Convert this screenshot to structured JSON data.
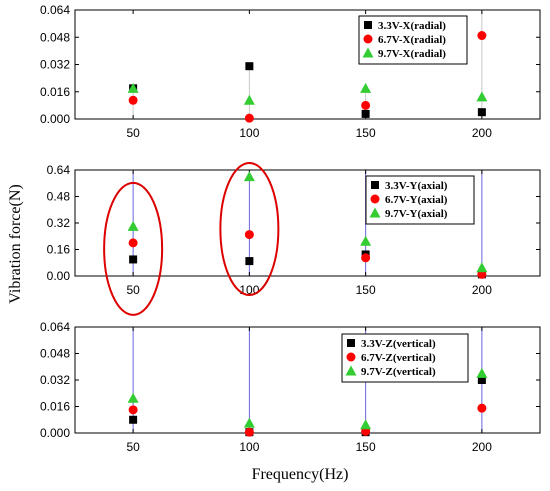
{
  "chart_data": [
    {
      "type": "scatter",
      "title": "",
      "xlabel": "",
      "ylabel": "",
      "x": [
        50,
        100,
        150,
        200
      ],
      "ylim": [
        0,
        0.064
      ],
      "yticks": [
        "0.000",
        "0.016",
        "0.032",
        "0.048",
        "0.064"
      ],
      "xticks": [
        "50",
        "100",
        "150",
        "200"
      ],
      "legend_position": "top-right",
      "series": [
        {
          "name": "3.3V-X(radial)",
          "marker": "square",
          "color": "#000000",
          "values": [
            0.018,
            0.031,
            0.003,
            0.004
          ]
        },
        {
          "name": "6.7V-X(radial)",
          "marker": "circle",
          "color": "#ff0000",
          "values": [
            0.011,
            0.0005,
            0.008,
            0.049
          ]
        },
        {
          "name": "9.7V-X(radial)",
          "marker": "triangle",
          "color": "#33cc33",
          "values": [
            0.018,
            0.011,
            0.018,
            0.013
          ]
        }
      ],
      "stems": [
        {
          "x": 50,
          "top": 0.018,
          "color": "#c8c8c8"
        },
        {
          "x": 100,
          "top": 0.031,
          "color": "#c8c8c8"
        },
        {
          "x": 150,
          "top": 0.018,
          "color": "#c8c8c8"
        },
        {
          "x": 200,
          "top": 0.064,
          "color": "#c8c8c8"
        }
      ]
    },
    {
      "type": "scatter",
      "title": "",
      "xlabel": "",
      "ylabel": "",
      "x": [
        50,
        100,
        150,
        200
      ],
      "ylim": [
        0,
        0.64
      ],
      "yticks": [
        "0.00",
        "0.16",
        "0.32",
        "0.48",
        "0.64"
      ],
      "xticks": [
        "50",
        "100",
        "150",
        "200"
      ],
      "legend_position": "top-right",
      "series": [
        {
          "name": "3.3V-Y(axial)",
          "marker": "square",
          "color": "#000000",
          "values": [
            0.1,
            0.09,
            0.13,
            0.01
          ]
        },
        {
          "name": "6.7V-Y(axial)",
          "marker": "circle",
          "color": "#ff0000",
          "values": [
            0.2,
            0.25,
            0.11,
            0.01
          ]
        },
        {
          "name": "9.7V-Y(axial)",
          "marker": "triangle",
          "color": "#33cc33",
          "values": [
            0.3,
            0.6,
            0.21,
            0.05
          ]
        }
      ],
      "stems": [
        {
          "x": 50,
          "top": 0.64,
          "color": "#6666dd"
        },
        {
          "x": 100,
          "top": 0.64,
          "color": "#6666dd"
        },
        {
          "x": 150,
          "top": 0.64,
          "color": "#6666dd"
        },
        {
          "x": 200,
          "top": 0.64,
          "color": "#6666dd"
        }
      ],
      "annotations": [
        {
          "shape": "ellipse",
          "x": 50,
          "y": 0.2,
          "color": "#dd0000"
        },
        {
          "shape": "ellipse",
          "x": 100,
          "y": 0.32,
          "color": "#dd0000"
        }
      ]
    },
    {
      "type": "scatter",
      "title": "",
      "xlabel": "",
      "ylabel": "",
      "x": [
        50,
        100,
        150,
        200
      ],
      "ylim": [
        0,
        0.064
      ],
      "yticks": [
        "0.000",
        "0.016",
        "0.032",
        "0.048",
        "0.064"
      ],
      "xticks": [
        "50",
        "100",
        "150",
        "200"
      ],
      "legend_position": "top-right",
      "series": [
        {
          "name": "3.3V-Z(vertical)",
          "marker": "square",
          "color": "#000000",
          "values": [
            0.008,
            0.0005,
            0.0005,
            0.032
          ]
        },
        {
          "name": "6.7V-Z(vertical)",
          "marker": "circle",
          "color": "#ff0000",
          "values": [
            0.014,
            0.0005,
            0.001,
            0.015
          ]
        },
        {
          "name": "9.7V-Z(vertical)",
          "marker": "triangle",
          "color": "#33cc33",
          "values": [
            0.021,
            0.006,
            0.005,
            0.036
          ]
        }
      ],
      "stems": [
        {
          "x": 50,
          "top": 0.064,
          "color": "#6666dd"
        },
        {
          "x": 100,
          "top": 0.064,
          "color": "#6666dd"
        },
        {
          "x": 150,
          "top": 0.064,
          "color": "#6666dd"
        },
        {
          "x": 200,
          "top": 0.064,
          "color": "#6666dd"
        }
      ]
    }
  ],
  "labels": {
    "ylabel": "Vibration force(N)",
    "xlabel": "Frequency(Hz)"
  }
}
